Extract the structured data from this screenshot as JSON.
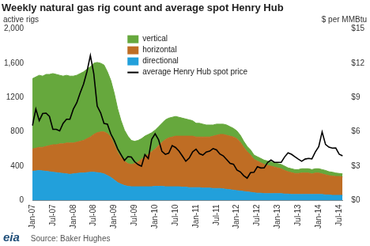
{
  "chart_data": {
    "type": "area",
    "title": "Weekly natural gas rig count and average spot Henry Hub",
    "y_label": "active rigs",
    "y2_label": "$ per MMBtu",
    "source": "Source: Baker Hughes",
    "logo": "eia",
    "categories": [
      "Jan-07",
      null,
      null,
      null,
      null,
      null,
      "Jul-07",
      null,
      null,
      null,
      null,
      null,
      "Jan-08",
      null,
      null,
      null,
      null,
      null,
      "Jul-08",
      null,
      null,
      null,
      null,
      null,
      "Jan-09",
      null,
      null,
      null,
      null,
      null,
      "Jul-09",
      null,
      null,
      null,
      null,
      null,
      "Jan-10",
      null,
      null,
      null,
      null,
      null,
      "Jul-10",
      null,
      null,
      null,
      null,
      null,
      "Jan-11",
      null,
      null,
      null,
      null,
      null,
      "Jul-11",
      null,
      null,
      null,
      null,
      null,
      "Jan-12",
      null,
      null,
      null,
      null,
      null,
      "Jul-12",
      null,
      null,
      null,
      null,
      null,
      "Jan-13",
      null,
      null,
      null,
      null,
      null,
      "Jul-13",
      null,
      null,
      null,
      null,
      null,
      "Jan-14",
      null,
      null,
      null,
      null,
      null,
      "Jul-14",
      null
    ],
    "series": [
      {
        "name": "vertical",
        "color": "#66a83d",
        "type": "area",
        "values": [
          820,
          830,
          840,
          830,
          840,
          830,
          830,
          820,
          800,
          790,
          790,
          780,
          780,
          780,
          790,
          800,
          810,
          820,
          830,
          820,
          800,
          780,
          720,
          660,
          600,
          510,
          430,
          360,
          320,
          280,
          260,
          250,
          240,
          240,
          230,
          220,
          220,
          220,
          220,
          230,
          230,
          230,
          230,
          220,
          210,
          200,
          190,
          180,
          160,
          160,
          150,
          140,
          140,
          130,
          130,
          120,
          120,
          120,
          110,
          100,
          90,
          80,
          70,
          60,
          60,
          50,
          50,
          50,
          50,
          50,
          50,
          50,
          50,
          50,
          50,
          45,
          45,
          45,
          45,
          50,
          50,
          50,
          50,
          50,
          50,
          50,
          50,
          45,
          45,
          40,
          35,
          35
        ]
      },
      {
        "name": "horizontal",
        "color": "#bf6d24",
        "type": "area",
        "values": [
          260,
          265,
          270,
          275,
          290,
          305,
          320,
          325,
          340,
          345,
          360,
          365,
          360,
          365,
          370,
          380,
          395,
          410,
          440,
          465,
          480,
          490,
          490,
          470,
          410,
          350,
          310,
          285,
          265,
          260,
          270,
          290,
          320,
          350,
          380,
          410,
          435,
          475,
          515,
          550,
          570,
          580,
          590,
          590,
          595,
          595,
          600,
          600,
          590,
          590,
          595,
          595,
          595,
          610,
          620,
          630,
          635,
          630,
          625,
          620,
          605,
          570,
          515,
          470,
          435,
          390,
          375,
          355,
          340,
          330,
          320,
          310,
          300,
          290,
          275,
          260,
          255,
          245,
          245,
          250,
          250,
          250,
          240,
          250,
          250,
          240,
          235,
          225,
          225,
          220,
          220,
          215
        ]
      },
      {
        "name": "directional",
        "color": "#22a0db",
        "type": "area",
        "values": [
          340,
          345,
          350,
          345,
          340,
          335,
          330,
          325,
          320,
          315,
          310,
          305,
          310,
          315,
          320,
          320,
          325,
          330,
          330,
          325,
          320,
          310,
          290,
          270,
          240,
          210,
          190,
          175,
          165,
          160,
          160,
          160,
          160,
          160,
          160,
          160,
          165,
          165,
          165,
          160,
          160,
          160,
          160,
          160,
          155,
          155,
          150,
          150,
          150,
          150,
          145,
          145,
          145,
          140,
          140,
          140,
          135,
          130,
          125,
          120,
          115,
          110,
          105,
          100,
          95,
          90,
          85,
          85,
          80,
          80,
          80,
          80,
          80,
          80,
          75,
          75,
          70,
          70,
          70,
          70,
          70,
          70,
          70,
          70,
          70,
          70,
          65,
          65,
          60,
          60,
          60,
          60
        ]
      },
      {
        "name": "average Henry Hub spot price",
        "color": "#000000",
        "type": "line",
        "axis": "y2",
        "values": [
          6.55,
          8.0,
          6.98,
          7.6,
          7.64,
          7.35,
          6.22,
          6.22,
          6.08,
          6.74,
          7.1,
          7.11,
          7.99,
          8.54,
          9.41,
          10.18,
          11.27,
          12.69,
          11.09,
          8.26,
          7.67,
          6.74,
          6.68,
          5.82,
          5.24,
          4.52,
          4.0,
          3.5,
          3.83,
          3.8,
          3.38,
          3.14,
          2.99,
          4.01,
          3.66,
          5.35,
          5.83,
          5.32,
          4.29,
          4.03,
          4.14,
          4.8,
          4.63,
          4.32,
          3.89,
          3.43,
          3.71,
          4.25,
          4.49,
          4.09,
          3.97,
          4.24,
          4.31,
          4.54,
          4.42,
          4.06,
          3.9,
          3.57,
          3.24,
          3.17,
          2.67,
          2.5,
          2.17,
          1.95,
          2.43,
          2.46,
          2.95,
          2.84,
          2.85,
          3.32,
          3.54,
          3.34,
          3.33,
          3.33,
          3.81,
          4.17,
          4.04,
          3.83,
          3.62,
          3.43,
          3.62,
          3.68,
          3.64,
          4.24,
          4.71,
          6.0,
          4.9,
          4.66,
          4.58,
          4.59,
          4.05,
          3.91
        ]
      }
    ],
    "ylim": [
      0,
      2000
    ],
    "yticks": [
      0,
      400,
      800,
      1200,
      {
        "value": 1600,
        "label": "1,600"
      },
      {
        "value": 2000,
        "label": "2,000"
      }
    ],
    "y2lim": [
      0,
      15
    ],
    "y2ticks": [
      {
        "value": 0,
        "label": "$0"
      },
      {
        "value": 3,
        "label": "$3"
      },
      {
        "value": 6,
        "label": "$6"
      },
      {
        "value": 9,
        "label": "$9"
      },
      {
        "value": 12,
        "label": "$12"
      },
      {
        "value": 15,
        "label": "$15"
      }
    ],
    "stacked": true,
    "grid": false,
    "legend": "upper center"
  }
}
